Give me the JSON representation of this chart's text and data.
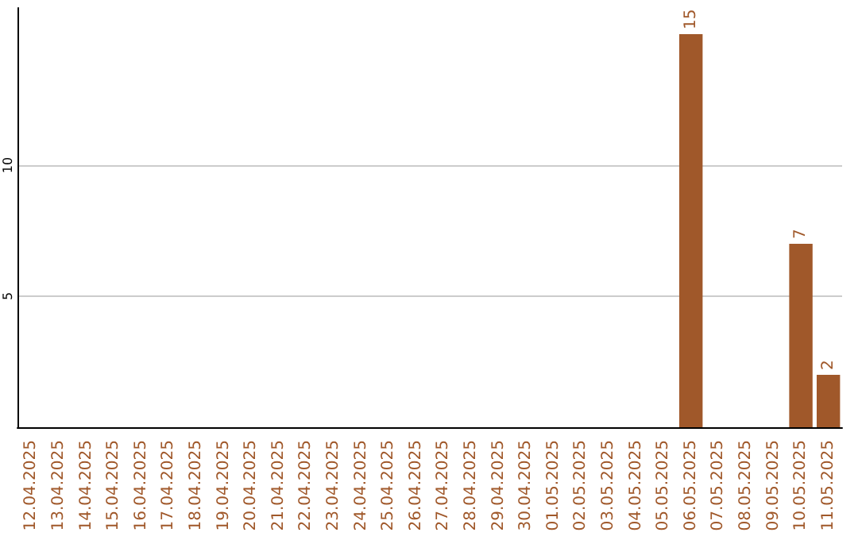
{
  "chart_data": {
    "type": "bar",
    "categories": [
      "12.04.2025",
      "13.04.2025",
      "14.04.2025",
      "15.04.2025",
      "16.04.2025",
      "17.04.2025",
      "18.04.2025",
      "19.04.2025",
      "20.04.2025",
      "21.04.2025",
      "22.04.2025",
      "23.04.2025",
      "24.04.2025",
      "25.04.2025",
      "26.04.2025",
      "27.04.2025",
      "28.04.2025",
      "29.04.2025",
      "30.04.2025",
      "01.05.2025",
      "02.05.2025",
      "03.05.2025",
      "04.05.2025",
      "05.05.2025",
      "06.05.2025",
      "07.05.2025",
      "08.05.2025",
      "09.05.2025",
      "10.05.2025",
      "11.05.2025"
    ],
    "values": [
      null,
      null,
      null,
      null,
      null,
      null,
      null,
      null,
      null,
      null,
      null,
      null,
      null,
      null,
      null,
      null,
      null,
      null,
      null,
      null,
      null,
      null,
      null,
      null,
      15,
      null,
      null,
      null,
      7,
      2
    ],
    "color": "#a0582a",
    "ylim": [
      0,
      16
    ],
    "yticks": [
      5,
      10
    ],
    "grid": "y",
    "data_labels": true
  }
}
